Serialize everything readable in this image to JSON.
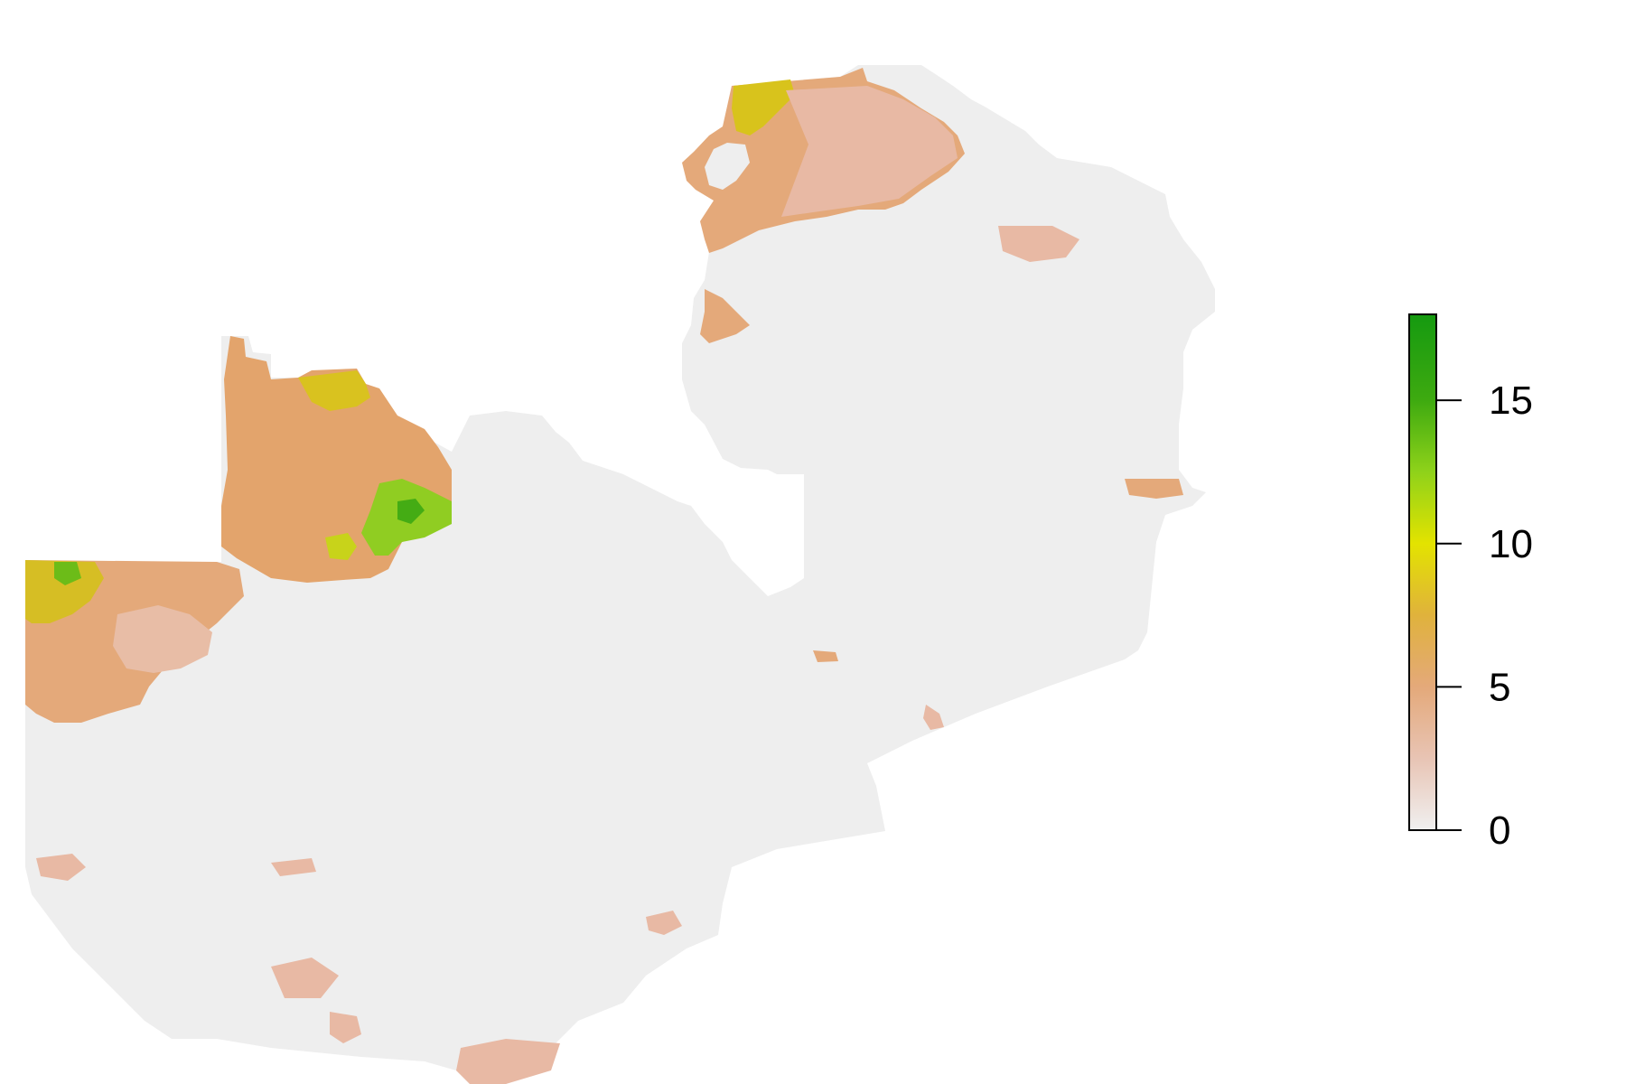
{
  "map": {
    "base_color": "#eeeeee",
    "legend": {
      "ticks": [
        {
          "value": 0,
          "label": "0"
        },
        {
          "value": 5,
          "label": "5"
        },
        {
          "value": 10,
          "label": "10"
        },
        {
          "value": 15,
          "label": "15"
        }
      ],
      "range": [
        0,
        18
      ],
      "color_stops": [
        {
          "value": 0,
          "color": "#f0f0f0"
        },
        {
          "value": 2.5,
          "color": "#e8c4b4"
        },
        {
          "value": 5,
          "color": "#e4a97a"
        },
        {
          "value": 7.5,
          "color": "#e0b23c"
        },
        {
          "value": 10,
          "color": "#e3e300"
        },
        {
          "value": 12.5,
          "color": "#8fd21a"
        },
        {
          "value": 15,
          "color": "#3eaa10"
        },
        {
          "value": 18,
          "color": "#159a10"
        }
      ]
    }
  }
}
